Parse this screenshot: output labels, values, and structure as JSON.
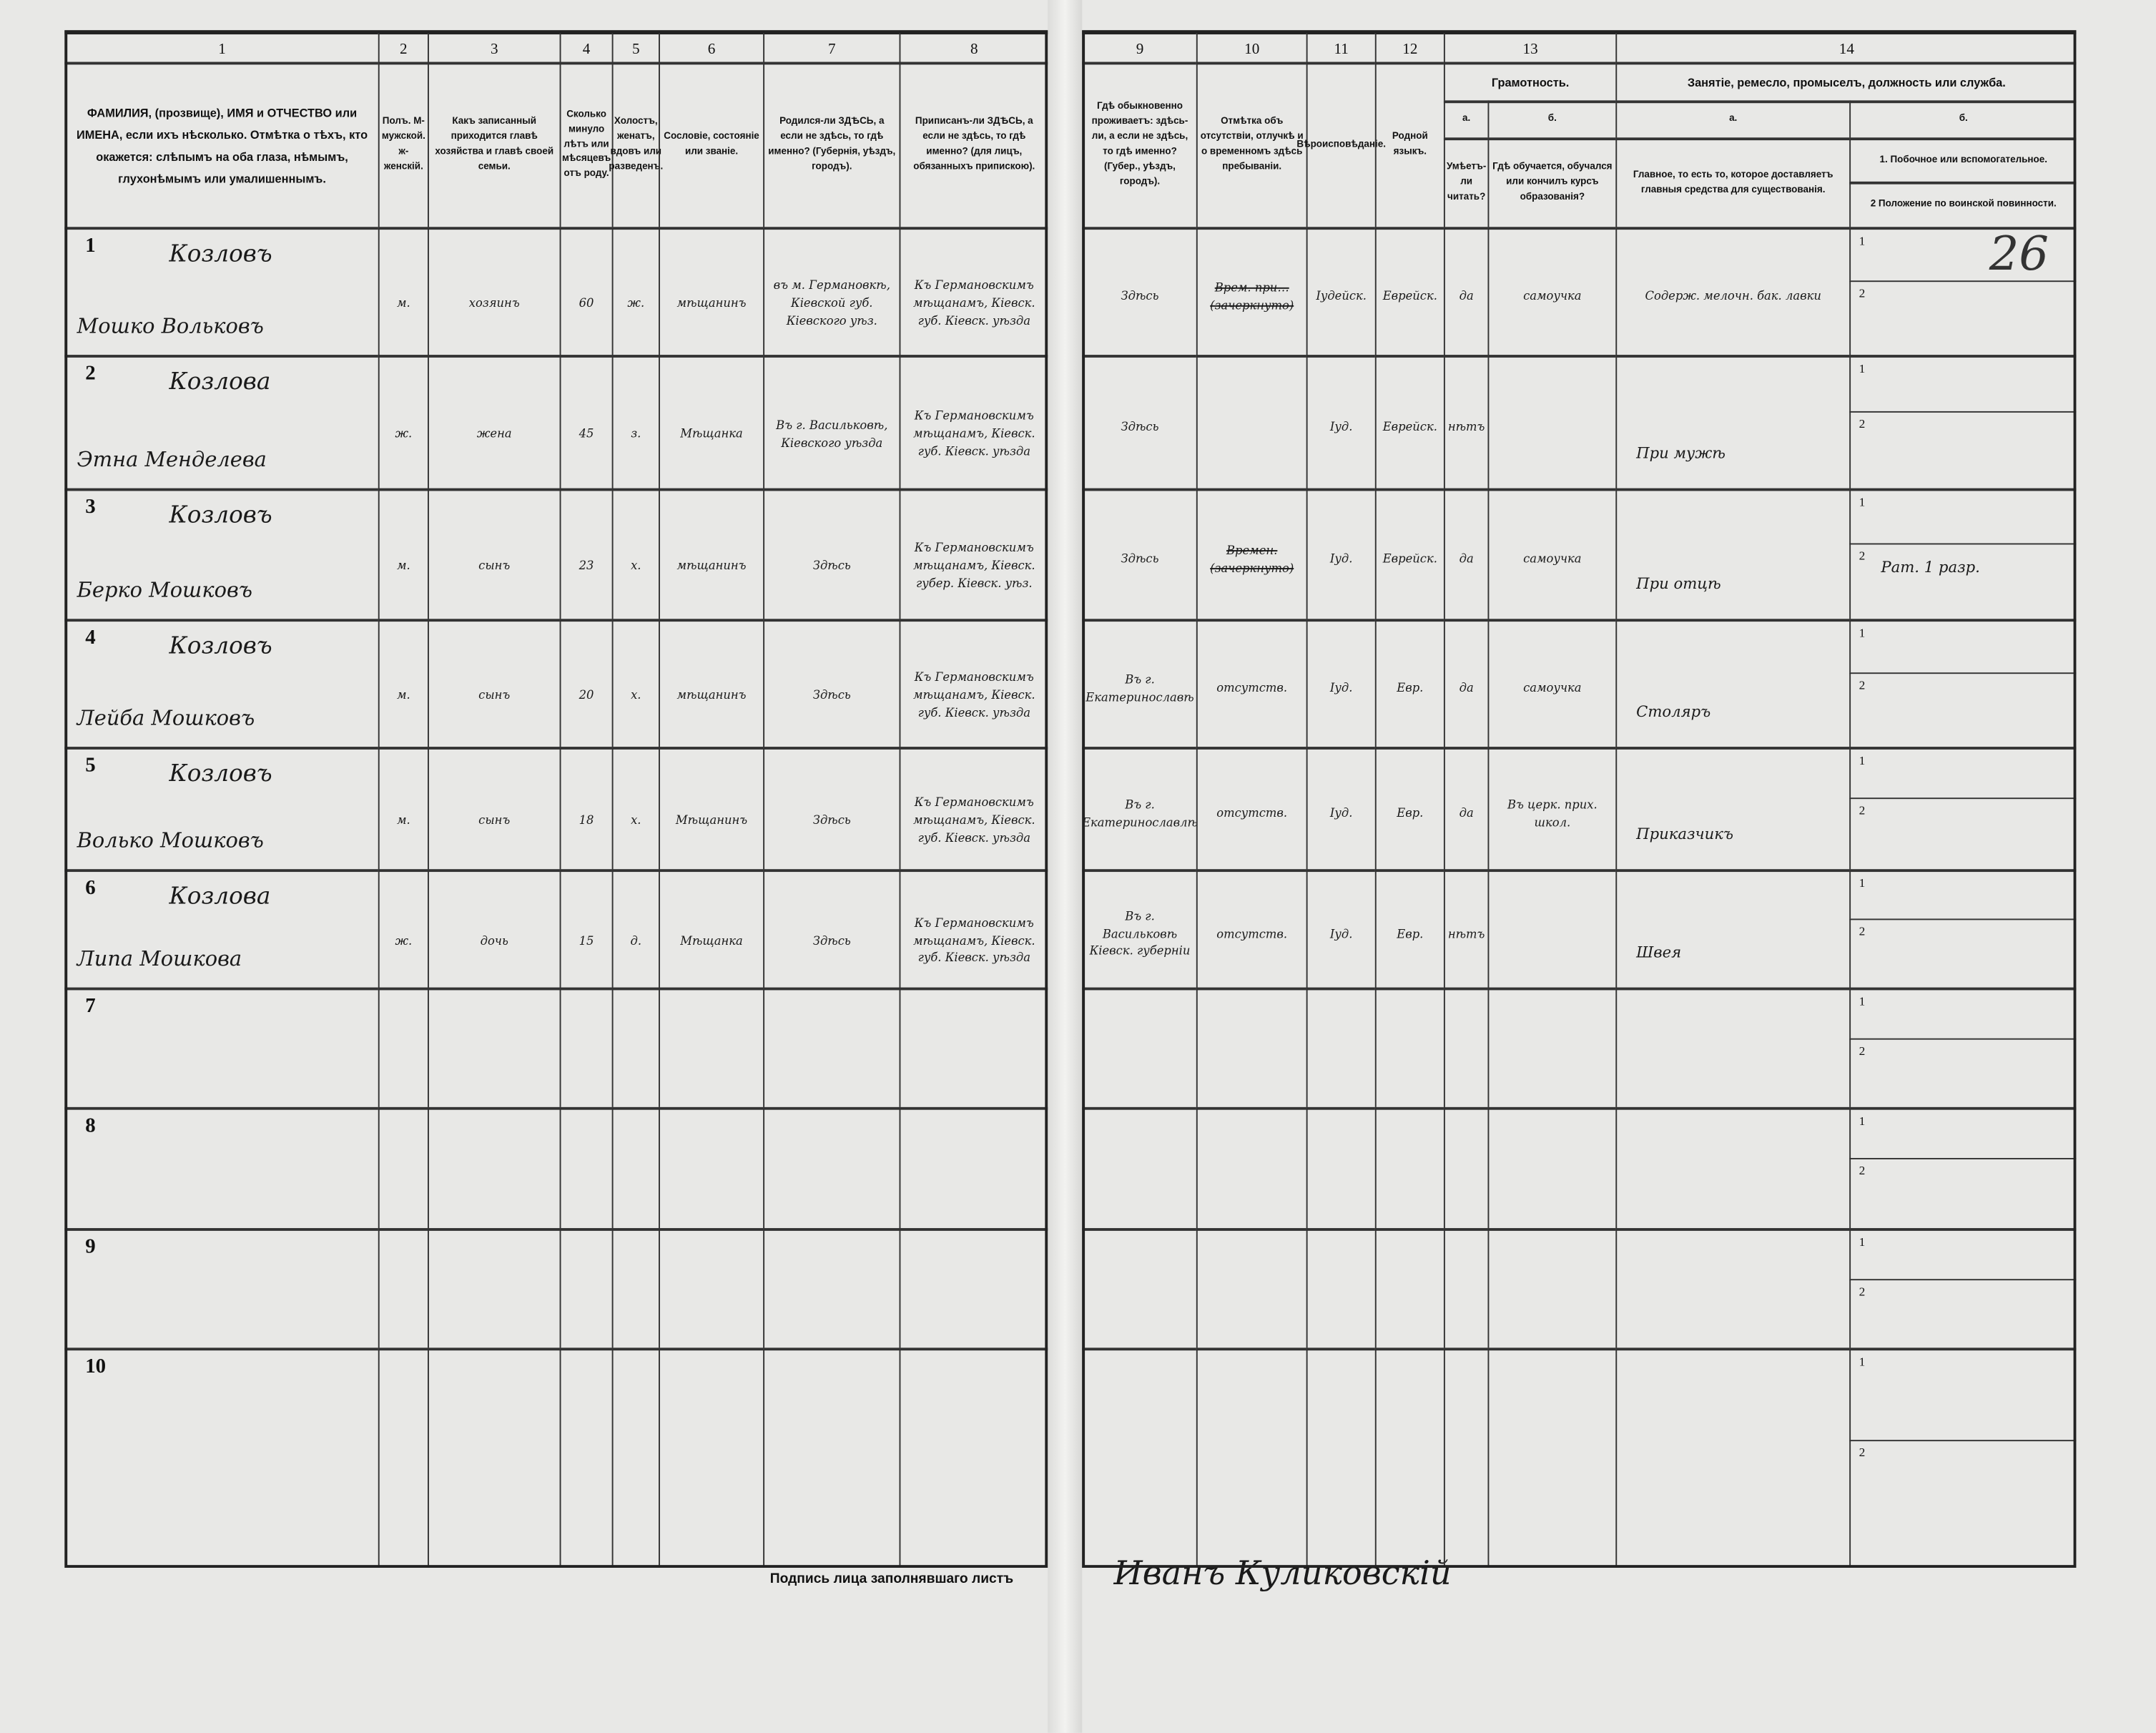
{
  "form": {
    "col_numbers_left": [
      "1",
      "2",
      "3",
      "4",
      "5",
      "6",
      "7",
      "8"
    ],
    "col_numbers_right": [
      "9",
      "10",
      "11",
      "12",
      "13",
      "14"
    ],
    "headers": {
      "c1": "ФАМИЛИЯ, (прозвище), ИМЯ и ОТЧЕСТВО или ИМЕНА, если ихъ нѣсколько. Отмѣтка о тѣхъ, кто окажется: слѣпымъ на оба глаза, нѣмымъ, глухонѣмымъ или умалишеннымъ.",
      "c2": "Полъ. М-мужской. ж-женскій.",
      "c3": "Какъ записанный приходится главѣ хозяйства и главѣ своей семьи.",
      "c4": "Сколько минуло лѣтъ или мѣсяцевъ отъ роду.",
      "c5": "Холостъ, женатъ, вдовъ или разведенъ.",
      "c6": "Сословіе, состояніе или званіе.",
      "c7": "Родился-ли ЗДѢСЬ, а если не здѣсь, то гдѣ именно? (Губернія, уѣздъ, городъ).",
      "c8": "Приписанъ-ли ЗДѢСЬ, а если не здѣсь, то гдѣ именно? (для лицъ, обязанныхъ припискою).",
      "c9": "Гдѣ обыкновенно проживаетъ: здѣсь-ли, а если не здѣсь, то гдѣ именно? (Губер., уѣздъ, городъ).",
      "c10": "Отмѣтка объ отсутствіи, отлучкѣ и о временномъ здѣсь пребываніи.",
      "c11": "Вѣроисповѣданіе.",
      "c12": "Родной языкъ.",
      "c13": "Грамотность.",
      "c13a_letter": "а.",
      "c13b_letter": "б.",
      "c13a": "Умѣетъ-ли читать?",
      "c13b": "Гдѣ обучается, обучался или кончилъ курсъ образованія?",
      "c14": "Занятіе, ремесло, промыселъ, должность или служба.",
      "c14a_letter": "а.",
      "c14b_letter": "б.",
      "c14a": "Главное, то есть то, которое доставляетъ главныя средства для существованія.",
      "c14b_1": "1. Побочное или вспомогательное.",
      "c14b_2": "2 Положение по воинской повинности."
    },
    "sub_labels": [
      "1",
      "2"
    ],
    "sheet_number": "26",
    "rows": [
      {
        "n": "1",
        "surname": "Козловъ",
        "given": "Мошко Вольковъ",
        "sex": "м.",
        "relation": "хозяинъ",
        "age": "60",
        "marital": "ж.",
        "estate": "мѣщанинъ",
        "birthplace": "въ м. Германовкѣ, Кіевской губ. Кіевского уѣз.",
        "registered": "Къ Германовскимъ мѣщанамъ, Кіевск. губ. Кіевск. уѣзда",
        "residence": "Здѣсь",
        "absence": "Врем. при… (зачеркнуто)",
        "religion": "Іудейск.",
        "language": "Еврейск.",
        "can_read": "да",
        "education": "самоучка",
        "occ_main": "Содерж. мелочн. бак. лавки",
        "occ_side": "",
        "military": ""
      },
      {
        "n": "2",
        "surname": "Козлова",
        "given": "Этна Менделева",
        "sex": "ж.",
        "relation": "жена",
        "age": "45",
        "marital": "з.",
        "estate": "Мѣщанка",
        "birthplace": "Въ г. Васильковѣ, Кіевского уѣзда",
        "registered": "Къ Германовскимъ мѣщанамъ, Кіевск. губ. Кіевск. уѣзда",
        "residence": "Здѣсь",
        "absence": "",
        "religion": "Іуд.",
        "language": "Еврейск.",
        "can_read": "нѣтъ",
        "education": "",
        "occ_main": "",
        "occ_side": "",
        "military": "При мужѣ"
      },
      {
        "n": "3",
        "surname": "Козловъ",
        "given": "Берко Мошковъ",
        "sex": "м.",
        "relation": "сынъ",
        "age": "23",
        "marital": "х.",
        "estate": "мѣщанинъ",
        "birthplace": "Здѣсь",
        "registered": "Къ Германовскимъ мѣщанамъ, Кіевск. губер. Кіевск. уѣз.",
        "residence": "Здѣсь",
        "absence": "Времен. (зачеркнуто)",
        "religion": "Іуд.",
        "language": "Еврейск.",
        "can_read": "да",
        "education": "самоучка",
        "occ_main": "",
        "occ_side": "",
        "military": "При отцѣ",
        "military_b": "Рат. 1 разр."
      },
      {
        "n": "4",
        "surname": "Козловъ",
        "given": "Лейба Мошковъ",
        "sex": "м.",
        "relation": "сынъ",
        "age": "20",
        "marital": "х.",
        "estate": "мѣщанинъ",
        "birthplace": "Здѣсь",
        "registered": "Къ Германовскимъ мѣщанамъ, Кіевск. губ. Кіевск. уѣзда",
        "residence": "Въ г. Екатеринославѣ",
        "absence": "отсутств.",
        "religion": "Іуд.",
        "language": "Евр.",
        "can_read": "да",
        "education": "самоучка",
        "occ_main": "",
        "occ_side": "",
        "military": "Столяръ"
      },
      {
        "n": "5",
        "surname": "Козловъ",
        "given": "Волько Мошковъ",
        "sex": "м.",
        "relation": "сынъ",
        "age": "18",
        "marital": "х.",
        "estate": "Мѣщанинъ",
        "birthplace": "Здѣсь",
        "registered": "Къ Германовскимъ мѣщанамъ, Кіевск. губ. Кіевск. уѣзда",
        "residence": "Въ г. Екатеринославлѣ",
        "absence": "отсутств.",
        "religion": "Іуд.",
        "language": "Евр.",
        "can_read": "да",
        "education": "Въ церк. прих. школ.",
        "occ_main": "",
        "occ_side": "",
        "military": "Приказчикъ"
      },
      {
        "n": "6",
        "surname": "Козлова",
        "given": "Липа Мошкова",
        "sex": "ж.",
        "relation": "дочь",
        "age": "15",
        "marital": "д.",
        "estate": "Мѣщанка",
        "birthplace": "Здѣсь",
        "registered": "Къ Германовскимъ мѣщанамъ, Кіевск. губ. Кіевск. уѣзда",
        "residence": "Въ г. Васильковѣ Кіевск. губерніи",
        "absence": "отсутств.",
        "religion": "Іуд.",
        "language": "Евр.",
        "can_read": "нѣтъ",
        "education": "",
        "occ_main": "",
        "occ_side": "",
        "military": "Швея"
      },
      {
        "n": "7"
      },
      {
        "n": "8"
      },
      {
        "n": "9"
      },
      {
        "n": "10"
      }
    ],
    "signature_label": "Подпись лица заполнявшаго листъ",
    "signature": "Иванъ Куликовскій"
  }
}
